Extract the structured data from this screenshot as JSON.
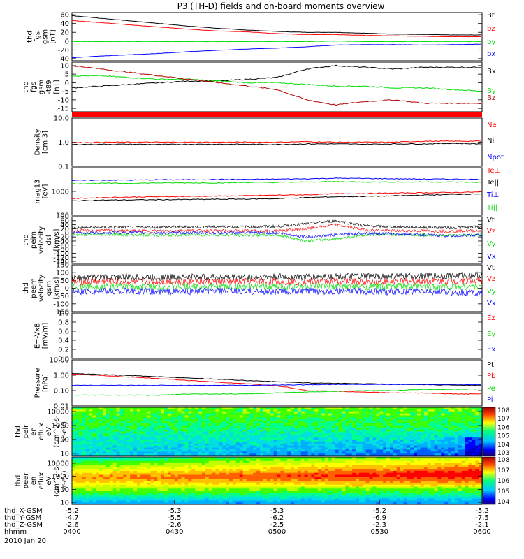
{
  "title": "P3 (TH-D) fields and on-board moments overview",
  "colors": {
    "black": "#000000",
    "red": "#ff0000",
    "darkred": "#b00000",
    "green": "#00dd00",
    "blue": "#0000ff"
  },
  "chart_data": [
    {
      "type": "line",
      "ylabel": [
        "thd",
        "fgs",
        "gsm",
        "[nT]"
      ],
      "yticks": [
        60,
        40,
        20,
        0,
        -20,
        -40
      ],
      "ylim": [
        -45,
        65
      ],
      "series": [
        {
          "name": "Bt",
          "color": "#000000",
          "values": [
            58,
            52,
            46,
            40,
            34,
            29,
            25,
            22,
            20,
            20,
            18,
            16,
            15,
            14,
            14
          ]
        },
        {
          "name": "bz",
          "color": "#ff0000",
          "values": [
            47,
            42,
            37,
            32,
            27,
            23,
            21,
            17,
            15,
            15,
            13,
            12,
            11,
            10,
            10
          ]
        },
        {
          "name": "by",
          "color": "#00dd00",
          "values": [
            -1,
            -1,
            -1,
            -1,
            -1,
            -1,
            -1,
            -1,
            -1,
            0,
            -1,
            -1,
            -1,
            -1,
            -1
          ]
        },
        {
          "name": "bx",
          "color": "#0000ff",
          "values": [
            -38,
            -34,
            -31,
            -28,
            -24,
            -21,
            -18,
            -16,
            -13,
            -9,
            -8,
            -8,
            -9,
            -8,
            -7
          ]
        }
      ]
    },
    {
      "type": "line",
      "ylabel": [
        "thd",
        "fgs",
        "gsm",
        "-t89",
        "[nT]"
      ],
      "yticks": [
        10,
        5,
        0,
        -5,
        -10,
        -15
      ],
      "ylim": [
        -17,
        12
      ],
      "series": [
        {
          "name": "Bx",
          "color": "#000000",
          "values": [
            -3,
            -2,
            -1,
            0,
            1,
            1,
            2,
            3,
            8,
            10,
            9,
            8,
            9,
            9,
            9
          ]
        },
        {
          "name": "By",
          "color": "#00dd00",
          "values": [
            4,
            4,
            3,
            2,
            2,
            1,
            0,
            0,
            -1,
            -2,
            -2,
            -3,
            -3,
            -4,
            -5
          ]
        },
        {
          "name": "Bz",
          "color": "#b00000",
          "values": [
            10,
            8,
            6,
            4,
            2,
            0,
            -2,
            -4,
            -10,
            -13,
            -11,
            -10,
            -12,
            -12,
            -12
          ]
        }
      ]
    },
    {
      "type": "line",
      "ylabel": [
        "Density",
        "[cm-3]"
      ],
      "yticks": [
        "10.0",
        "1.0",
        "0.1"
      ],
      "ylim": [
        0.1,
        10
      ],
      "log": true,
      "series": [
        {
          "name": "Ne",
          "color": "#ff0000",
          "values": [
            0.95,
            1,
            1,
            1,
            1,
            1,
            1,
            1,
            1.05,
            1,
            1,
            1,
            1.1,
            1.1,
            1.1
          ]
        },
        {
          "name": "Ni",
          "color": "#000000",
          "values": [
            0.8,
            0.82,
            0.82,
            0.8,
            0.82,
            0.82,
            0.82,
            0.8,
            0.85,
            0.85,
            0.82,
            0.85,
            0.85,
            0.9,
            0.85
          ]
        },
        {
          "name": "Npot",
          "color": "#0000ff",
          "values": []
        }
      ]
    },
    {
      "type": "line",
      "ylabel": [
        "mag13",
        "[eV]"
      ],
      "yticks": [
        "1000",
        "100"
      ],
      "ylim": [
        100,
        10000
      ],
      "log": true,
      "series": [
        {
          "name": "Te⊥",
          "color": "#ff0000",
          "values": [
            500,
            550,
            580,
            600,
            620,
            640,
            660,
            700,
            720,
            800,
            820,
            850,
            880,
            900,
            950
          ]
        },
        {
          "name": "Te||",
          "color": "#000000",
          "values": [
            400,
            430,
            440,
            450,
            460,
            470,
            480,
            500,
            550,
            600,
            620,
            650,
            700,
            750,
            800
          ]
        },
        {
          "name": "Ti⊥",
          "color": "#0000ff",
          "values": [
            2900,
            3000,
            3000,
            3100,
            3100,
            3200,
            3200,
            3300,
            3400,
            3600,
            3500,
            3400,
            3300,
            3300,
            3200
          ]
        },
        {
          "name": "Ti||",
          "color": "#00dd00",
          "values": [
            2100,
            2200,
            2200,
            2300,
            2300,
            2300,
            2400,
            2400,
            2500,
            2600,
            2500,
            2500,
            2500,
            2500,
            2400
          ]
        }
      ]
    },
    {
      "type": "line",
      "ylabel": [
        "thd",
        "peim",
        "velocity",
        "dsl",
        "[km/s]"
      ],
      "yticks": [
        80,
        60,
        40,
        20,
        0,
        -20,
        -40,
        -60,
        -80,
        -100,
        -120,
        -140
      ],
      "ylim": [
        -150,
        80
      ],
      "series": [
        {
          "name": "Vt",
          "color": "#000000",
          "values": [
            25,
            27,
            28,
            28,
            30,
            30,
            30,
            32,
            45,
            60,
            35,
            30,
            28,
            25,
            30
          ]
        },
        {
          "name": "Vz",
          "color": "#ff0000",
          "values": [
            10,
            12,
            10,
            10,
            12,
            10,
            10,
            10,
            20,
            40,
            15,
            10,
            10,
            8,
            12
          ]
        },
        {
          "name": "Vy",
          "color": "#00dd00",
          "values": [
            -10,
            -8,
            -10,
            -12,
            -10,
            -10,
            -12,
            -10,
            -40,
            -30,
            -10,
            -8,
            -10,
            -12,
            -10
          ]
        },
        {
          "name": "Vx",
          "color": "#0000ff",
          "values": [
            0,
            0,
            2,
            0,
            0,
            0,
            0,
            0,
            -20,
            -10,
            0,
            -5,
            -10,
            -15,
            -10
          ]
        }
      ]
    },
    {
      "type": "line",
      "ylabel": [
        "thd",
        "peem",
        "velocity",
        "gsm",
        "[km/s]"
      ],
      "yticks": [
        150,
        100,
        50,
        0,
        -50,
        -100,
        -150
      ],
      "ylim": [
        -150,
        150
      ],
      "series": [
        {
          "name": "Vt",
          "color": "#000000",
          "values": [
            65,
            70,
            70,
            70,
            72,
            70,
            70,
            72,
            72,
            75,
            75,
            75,
            78,
            80,
            85
          ]
        },
        {
          "name": "Vz",
          "color": "#ff0000",
          "values": [
            40,
            42,
            40,
            42,
            42,
            40,
            42,
            42,
            40,
            45,
            40,
            42,
            45,
            45,
            50
          ]
        },
        {
          "name": "Vy",
          "color": "#00dd00",
          "values": [
            10,
            12,
            10,
            10,
            12,
            10,
            10,
            10,
            12,
            10,
            10,
            12,
            10,
            10,
            12
          ]
        },
        {
          "name": "Vx",
          "color": "#0000ff",
          "values": [
            -20,
            -18,
            -20,
            -22,
            -20,
            -18,
            -20,
            -22,
            -20,
            -18,
            -20,
            -22,
            -20,
            -25,
            -30
          ]
        }
      ]
    },
    {
      "type": "line",
      "ylabel": [
        "E=-VxB",
        "[mV/m]"
      ],
      "yticks": [
        "1.0",
        "0.8",
        "0.6",
        "0.4",
        "0.2",
        "0.0"
      ],
      "ylim": [
        0,
        1
      ],
      "series": [
        {
          "name": "Ez",
          "color": "#ff0000",
          "values": []
        },
        {
          "name": "Ey",
          "color": "#00dd00",
          "values": []
        },
        {
          "name": "Ex",
          "color": "#0000ff",
          "values": []
        }
      ]
    },
    {
      "type": "line",
      "ylabel": [
        "Pressure",
        "[nPa]"
      ],
      "yticks": [
        "10.00",
        "1.00",
        "0.10",
        "0.01"
      ],
      "ylim": [
        0.01,
        10
      ],
      "log": true,
      "series": [
        {
          "name": "Pt",
          "color": "#000000",
          "values": [
            1.3,
            1.1,
            0.95,
            0.8,
            0.65,
            0.55,
            0.45,
            0.38,
            0.32,
            0.3,
            0.28,
            0.26,
            0.24,
            0.23,
            0.22
          ]
        },
        {
          "name": "Pb",
          "color": "#ff0000",
          "values": [
            1.2,
            0.95,
            0.75,
            0.6,
            0.45,
            0.35,
            0.27,
            0.2,
            0.1,
            0.09,
            0.08,
            0.07,
            0.07,
            0.06,
            0.06
          ]
        },
        {
          "name": "Pe",
          "color": "#00dd00",
          "values": [
            0.05,
            0.05,
            0.05,
            0.05,
            0.06,
            0.06,
            0.06,
            0.07,
            0.08,
            0.09,
            0.1,
            0.1,
            0.12,
            0.12,
            0.13
          ]
        },
        {
          "name": "Pi",
          "color": "#0000ff",
          "values": [
            0.22,
            0.22,
            0.22,
            0.22,
            0.22,
            0.22,
            0.22,
            0.23,
            0.24,
            0.25,
            0.25,
            0.25,
            0.25,
            0.25,
            0.25
          ]
        }
      ]
    },
    {
      "type": "heatmap",
      "ylabel": [
        "thd",
        "peir",
        "en",
        "eflux",
        "eV",
        "(cm^2-s-",
        "sr-eV)"
      ],
      "yticks": [
        "10000",
        "1000",
        "100",
        "10"
      ],
      "ylim": [
        7,
        20000
      ],
      "log": true,
      "colorbar": {
        "ticks": [
          "10^8",
          "10^7",
          "10^6",
          "10^5",
          "10^4",
          "10^3"
        ]
      }
    },
    {
      "type": "heatmap",
      "ylabel": [
        "thd",
        "peer",
        "en",
        "eflux",
        "eV",
        "(cm^2-s-",
        "sr-eV)"
      ],
      "yticks": [
        "10000",
        "1000",
        "100",
        "10"
      ],
      "ylim": [
        7,
        30000
      ],
      "log": true,
      "colorbar": {
        "ticks": [
          "10^8",
          "10^7",
          "10^6",
          "10^5",
          "10^4"
        ]
      }
    }
  ],
  "x_axis": {
    "rows": [
      {
        "label": "thd_X-GSM",
        "values": [
          "-5.2",
          "-5.3",
          "-5.3",
          "-5.2",
          "-5.2"
        ]
      },
      {
        "label": "thd_Y-GSM",
        "values": [
          "-4.7",
          "-5.5",
          "-6.2",
          "-6.9",
          "-7.5"
        ]
      },
      {
        "label": "thd_Z-GSM",
        "values": [
          "-2.6",
          "-2.6",
          "-2.5",
          "-2.3",
          "-2.1"
        ]
      },
      {
        "label": "hhmm",
        "values": [
          "0400",
          "0430",
          "0500",
          "0530",
          "0600"
        ]
      }
    ],
    "date": "2010 Jan 20"
  }
}
